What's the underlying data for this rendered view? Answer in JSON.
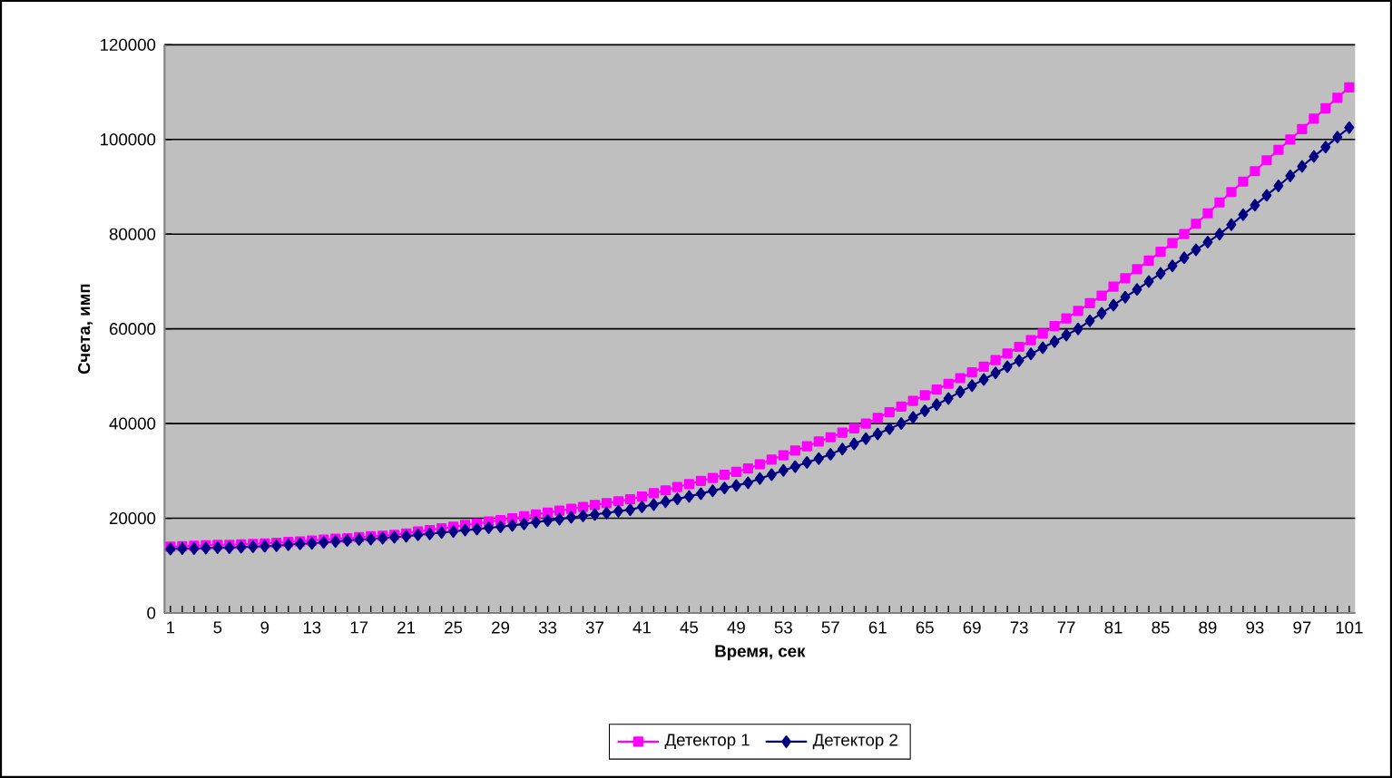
{
  "chart_data": {
    "type": "line",
    "xlabel": "Время, сек",
    "ylabel": "Счета, имп",
    "categories": [
      "1",
      null,
      null,
      null,
      "5",
      null,
      null,
      null,
      "9",
      null,
      null,
      null,
      "13",
      null,
      null,
      null,
      "17",
      null,
      null,
      null,
      "21",
      null,
      null,
      null,
      "25",
      null,
      null,
      null,
      "29",
      null,
      null,
      null,
      "33",
      null,
      null,
      null,
      "37",
      null,
      null,
      null,
      "41",
      null,
      null,
      null,
      "45",
      null,
      null,
      null,
      "49",
      null,
      null,
      null,
      "53",
      null,
      null,
      null,
      "57",
      null,
      null,
      null,
      "61",
      null,
      null,
      null,
      "65",
      null,
      null,
      null,
      "69",
      null,
      null,
      null,
      "73",
      null,
      null,
      null,
      "77",
      null,
      null,
      null,
      "81",
      null,
      null,
      null,
      "85",
      null,
      null,
      null,
      "89",
      null,
      null,
      null,
      "93",
      null,
      null,
      null,
      "97",
      null,
      null,
      null,
      "101"
    ],
    "series": [
      {
        "name": "Детектор 1",
        "color": "#ff00ff",
        "marker": "square",
        "values": [
          14000,
          14100,
          14200,
          14300,
          14400,
          14400,
          14500,
          14600,
          14700,
          14800,
          15000,
          15100,
          15300,
          15500,
          15700,
          15800,
          16000,
          16200,
          16300,
          16500,
          16800,
          17200,
          17500,
          17900,
          18200,
          18600,
          18900,
          19300,
          19600,
          20000,
          20400,
          20800,
          21200,
          21600,
          22000,
          22400,
          22800,
          23200,
          23600,
          24000,
          24600,
          25300,
          25900,
          26600,
          27200,
          27900,
          28500,
          29200,
          29800,
          30500,
          31400,
          32400,
          33300,
          34300,
          35200,
          36200,
          37100,
          38100,
          39000,
          40000,
          41200,
          42400,
          43600,
          44800,
          46000,
          47200,
          48400,
          49600,
          50800,
          52000,
          53400,
          54800,
          56200,
          57600,
          59000,
          60600,
          62200,
          63800,
          65400,
          67000,
          68900,
          70700,
          72600,
          74400,
          76300,
          78100,
          80000,
          82200,
          84400,
          86700,
          88900,
          91100,
          93300,
          95600,
          97800,
          100000,
          102200,
          104400,
          106600,
          108800,
          111000
        ]
      },
      {
        "name": "Детектор 2",
        "color": "#000080",
        "marker": "diamond",
        "values": [
          13500,
          13600,
          13600,
          13700,
          13800,
          13800,
          13900,
          14000,
          14100,
          14200,
          14400,
          14600,
          14700,
          14900,
          15100,
          15300,
          15500,
          15600,
          15800,
          16000,
          16200,
          16500,
          16700,
          17000,
          17200,
          17500,
          17700,
          18000,
          18200,
          18500,
          18800,
          19200,
          19500,
          19800,
          20200,
          20500,
          20800,
          21100,
          21500,
          21800,
          22400,
          22900,
          23500,
          24100,
          24600,
          25200,
          25800,
          26400,
          26900,
          27500,
          28400,
          29200,
          30100,
          30900,
          31800,
          32600,
          33500,
          34600,
          35700,
          36800,
          37800,
          38900,
          40000,
          41300,
          42700,
          44000,
          45300,
          46700,
          48000,
          49300,
          50700,
          52000,
          53300,
          54700,
          56000,
          57300,
          58700,
          60000,
          61700,
          63300,
          65000,
          66700,
          68300,
          70000,
          71700,
          73300,
          75000,
          76700,
          78300,
          80000,
          82000,
          84100,
          86100,
          88200,
          90200,
          92300,
          94300,
          96400,
          98400,
          100500,
          102500
        ]
      }
    ],
    "ylim": [
      0,
      120000
    ],
    "yticks": [
      0,
      20000,
      40000,
      60000,
      80000,
      100000,
      120000
    ],
    "grid": "y",
    "legend": "bottom",
    "line_style": "solid"
  }
}
